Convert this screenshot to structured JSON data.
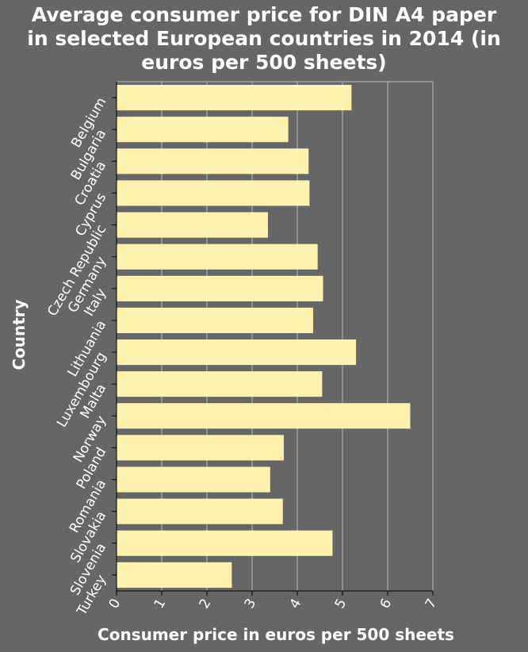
{
  "chart_data": {
    "type": "bar",
    "orientation": "horizontal",
    "title": "Average consumer price for DIN A4 paper in selected European countries in 2014 (in euros per 500 sheets)",
    "title_lines": [
      "Average consumer price for DIN A4 paper",
      "in selected European countries in 2014 (in",
      "euros per 500 sheets)"
    ],
    "xlabel": "Consumer price in euros per 500 sheets",
    "ylabel": "Country",
    "categories": [
      "Belgium",
      "Bulgaria",
      "Croatia",
      "Cyprus",
      "Czech Republic",
      "Germany",
      "Italy",
      "Lithuania",
      "Luxembourg",
      "Malta",
      "Norway",
      "Poland",
      "Romania",
      "Slovakia",
      "Slovenia",
      "Turkey"
    ],
    "values": [
      5.2,
      3.8,
      4.25,
      4.27,
      3.35,
      4.45,
      4.57,
      4.35,
      5.3,
      4.55,
      6.5,
      3.7,
      3.4,
      3.68,
      4.78,
      2.55
    ],
    "xlim": [
      0,
      7
    ],
    "xticks": [
      "0",
      "1",
      "2",
      "3",
      "4",
      "5",
      "6",
      "7"
    ],
    "grid": "vertical",
    "colors": {
      "background": "#666666",
      "bar": "#fff2ae",
      "grid": "#bbbbbb",
      "text": "#ffffff"
    }
  }
}
